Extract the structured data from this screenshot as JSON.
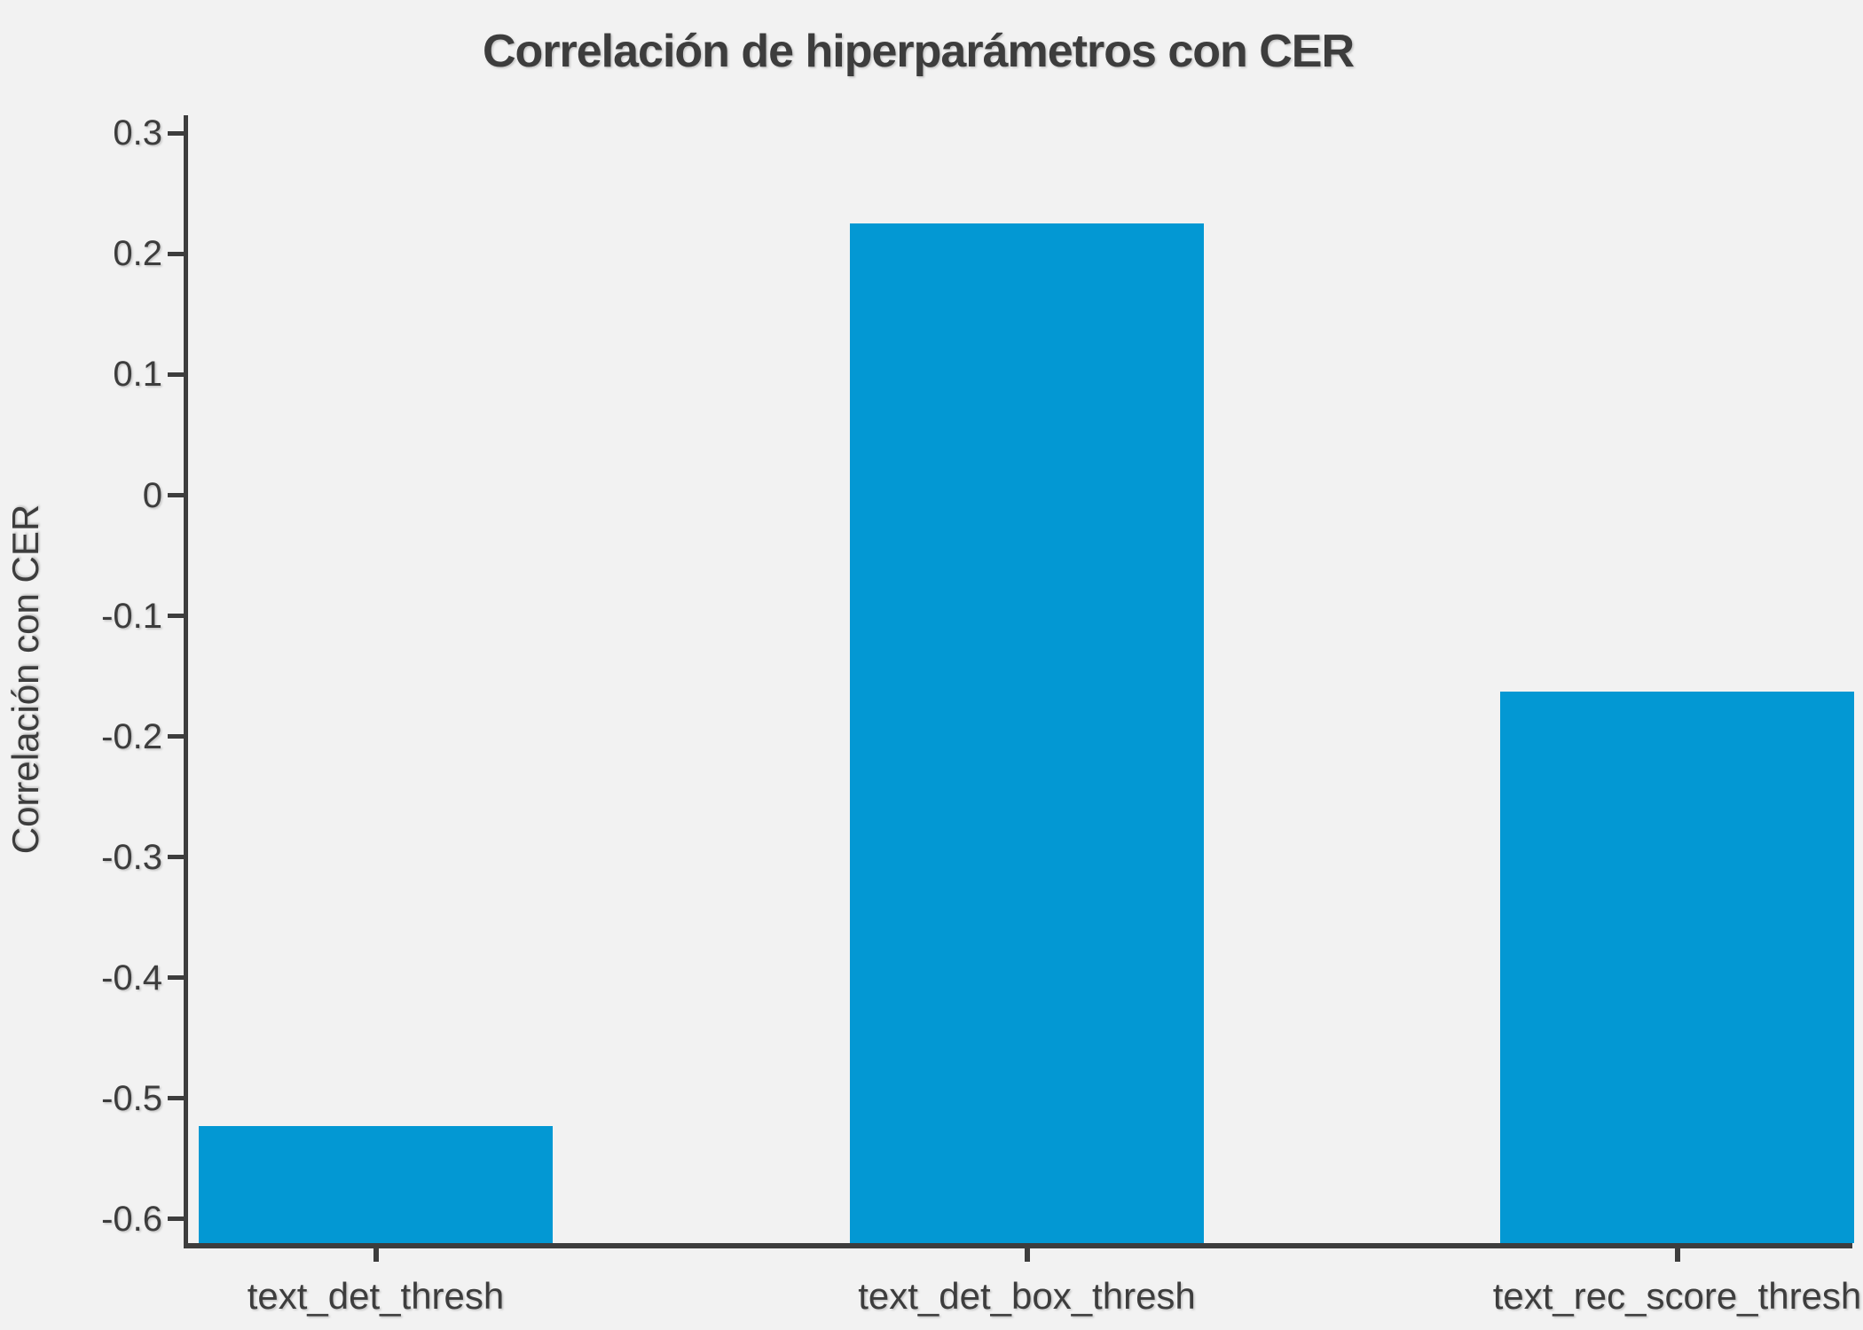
{
  "figure": {
    "background_color": "#f2f2f2",
    "axis_color": "#3d3d3d",
    "text_color": "#3d3d3d",
    "bar_color": "#0398d3"
  },
  "chart_data": {
    "type": "bar",
    "title": "Correlación de hiperparámetros con CER",
    "ylabel": "Correlación con CER",
    "xlabel": "",
    "categories": [
      "text_det_thresh",
      "text_det_box_thresh",
      "text_rec_score_thresh"
    ],
    "values": [
      -0.523,
      0.225,
      -0.163
    ],
    "ylim": [
      -0.62,
      0.315
    ],
    "yticks": [
      0.3,
      0.2,
      0.1,
      0,
      -0.1,
      -0.2,
      -0.3,
      -0.4,
      -0.5,
      -0.6
    ],
    "ytick_labels": [
      "0.3",
      "0.2",
      "0.1",
      "0",
      "-0.1",
      "-0.2",
      "-0.3",
      "-0.4",
      "-0.5",
      "-0.6"
    ],
    "grid": false,
    "legend": false,
    "bar_baseline": "axis_bottom"
  }
}
